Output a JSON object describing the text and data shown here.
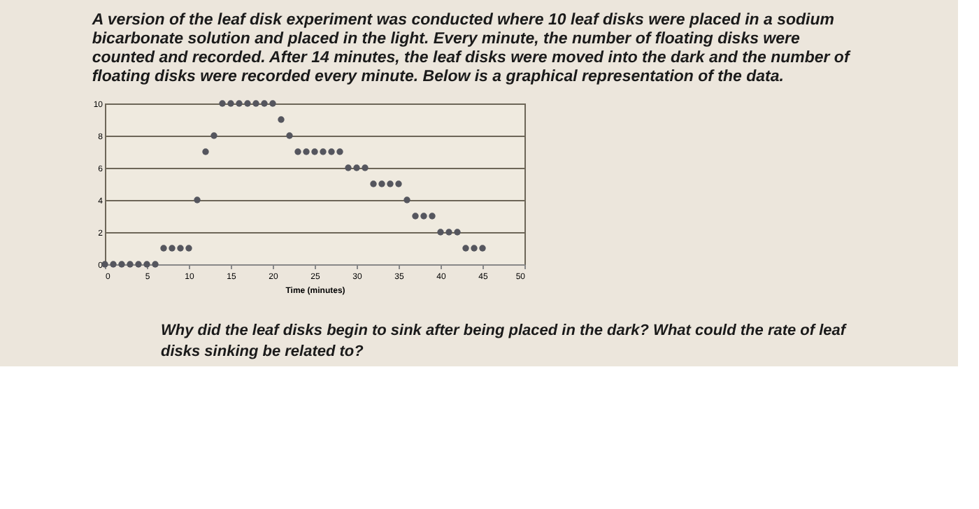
{
  "chart_data": {
    "type": "scatter",
    "title": "A version of the leaf disk experiment was conducted where 10 leaf disks were placed in a sodium bicarbonate solution and placed in the light. Every minute, the number of floating disks were counted and recorded. After 14 minutes, the leaf disks were moved into the dark and the number of floating disks were recorded every minute. Below is a graphical representation of the data.",
    "xlabel": "Time (minutes)",
    "x": [
      0,
      1,
      2,
      3,
      4,
      5,
      6,
      7,
      8,
      9,
      10,
      11,
      12,
      13,
      14,
      15,
      16,
      17,
      18,
      19,
      20,
      21,
      22,
      23,
      24,
      25,
      26,
      27,
      28,
      29,
      30,
      31,
      32,
      33,
      34,
      35,
      36,
      37,
      38,
      39,
      40,
      41,
      42,
      43,
      44,
      45
    ],
    "series": [
      {
        "color": "#55565e",
        "values": [
          0,
          0,
          0,
          0,
          0,
          0,
          0,
          1,
          1,
          1,
          1,
          4,
          7,
          8,
          10,
          10,
          10,
          10,
          10,
          10,
          10,
          9,
          8,
          7,
          7,
          7,
          7,
          7,
          7,
          6,
          6,
          6,
          5,
          5,
          5,
          5,
          4,
          3,
          3,
          3,
          2,
          2,
          2,
          1,
          1,
          1
        ]
      }
    ],
    "xlim": [
      0,
      50
    ],
    "xticks": [
      0,
      5,
      10,
      15,
      20,
      25,
      30,
      35,
      40,
      45,
      50
    ],
    "ylim": [
      0,
      10
    ],
    "yticks": [
      0,
      2,
      4,
      6,
      8,
      10
    ],
    "grid": "y",
    "marker": "circle",
    "annotations": [
      "Why did the leaf disks begin to sink after being placed in the dark? What could the rate of leaf disks sinking be related to?"
    ]
  }
}
